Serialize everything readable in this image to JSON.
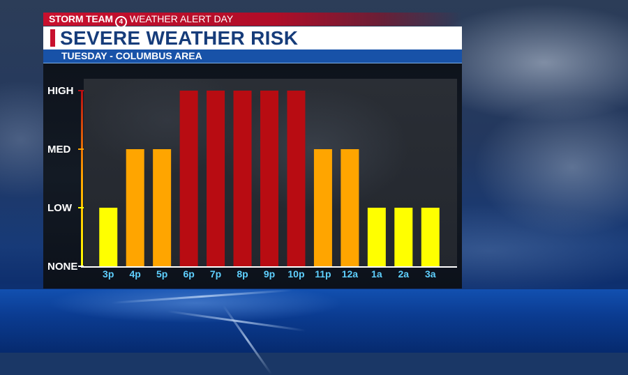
{
  "header": {
    "brand": "STORM TEAM",
    "badge": "4",
    "alert_label": "WEATHER ALERT DAY",
    "title": "SEVERE WEATHER RISK",
    "subtitle": "TUESDAY - COLUMBUS AREA"
  },
  "chart_data": {
    "type": "bar",
    "categories": [
      "3p",
      "4p",
      "5p",
      "6p",
      "7p",
      "8p",
      "9p",
      "10p",
      "11p",
      "12a",
      "1a",
      "2a",
      "3a"
    ],
    "values": [
      1,
      2,
      2,
      3,
      3,
      3,
      3,
      3,
      2,
      2,
      1,
      1,
      1
    ],
    "ylim": [
      0,
      3
    ],
    "yticks": [
      {
        "value": 3,
        "label": "HIGH"
      },
      {
        "value": 2,
        "label": "MED"
      },
      {
        "value": 1,
        "label": "LOW"
      },
      {
        "value": 0,
        "label": "NONE"
      }
    ],
    "level_colors": {
      "1": "#ffff00",
      "2": "#ffa500",
      "3": "#b80c12"
    },
    "axis_gradient": [
      "#ffff00",
      "#ffa500",
      "#b80c12"
    ],
    "grid": false,
    "title": "",
    "xlabel": "",
    "ylabel": ""
  }
}
